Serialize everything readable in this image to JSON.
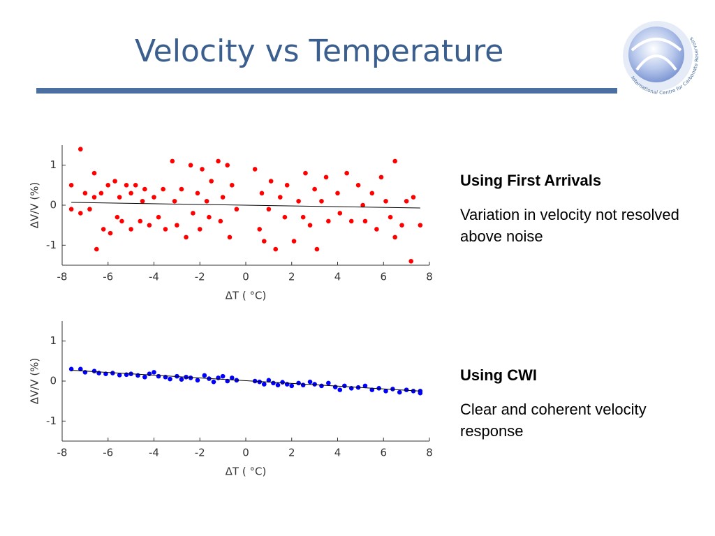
{
  "title": "Velocity vs Temperature",
  "logo_text": "International Centre for Carbonate Reservoirs",
  "panels": [
    {
      "heading": "Using First Arrivals",
      "text": "Variation in velocity not resolved above noise"
    },
    {
      "heading": "Using CWI",
      "text": "Clear and coherent velocity response"
    }
  ],
  "chart_data": [
    {
      "type": "scatter",
      "xlabel": "ΔT ( °C)",
      "ylabel": "ΔV/V (%)",
      "xlim": [
        -8,
        8
      ],
      "ylim": [
        -1.5,
        1.5
      ],
      "xticks": [
        -8,
        -6,
        -4,
        -2,
        0,
        2,
        4,
        6,
        8
      ],
      "yticks": [
        -1,
        0,
        1
      ],
      "series": [
        {
          "color": "#ff0000",
          "x": [
            -7.6,
            -7.6,
            -7.2,
            -7.2,
            -7.0,
            -6.8,
            -6.6,
            -6.6,
            -6.5,
            -6.3,
            -6.2,
            -6.0,
            -5.9,
            -5.7,
            -5.6,
            -5.5,
            -5.4,
            -5.2,
            -5.0,
            -5.0,
            -4.8,
            -4.6,
            -4.5,
            -4.4,
            -4.2,
            -4.0,
            -3.8,
            -3.6,
            -3.5,
            -3.2,
            -3.1,
            -3.0,
            -2.8,
            -2.6,
            -2.4,
            -2.3,
            -2.1,
            -2.0,
            -1.9,
            -1.7,
            -1.6,
            -1.5,
            -1.2,
            -1.1,
            -1.0,
            -0.8,
            -0.7,
            -0.6,
            -0.4,
            0.4,
            0.6,
            0.7,
            0.8,
            1.0,
            1.1,
            1.3,
            1.5,
            1.7,
            1.8,
            2.1,
            2.3,
            2.5,
            2.6,
            2.8,
            3.0,
            3.1,
            3.3,
            3.5,
            3.6,
            4.0,
            4.1,
            4.4,
            4.6,
            4.9,
            5.1,
            5.2,
            5.5,
            5.7,
            5.9,
            6.1,
            6.3,
            6.5,
            6.5,
            6.8,
            7.0,
            7.2,
            7.3,
            7.6
          ],
          "y": [
            0.5,
            -0.1,
            1.4,
            -0.2,
            0.3,
            -0.1,
            0.8,
            0.2,
            -1.1,
            0.3,
            -0.6,
            0.5,
            -0.7,
            0.6,
            -0.3,
            0.2,
            -0.4,
            0.5,
            0.3,
            -0.6,
            0.5,
            -0.4,
            0.1,
            0.4,
            -0.5,
            0.2,
            -0.3,
            0.4,
            -0.6,
            1.1,
            0.1,
            -0.5,
            0.4,
            -0.8,
            1.0,
            -0.2,
            0.3,
            -0.6,
            0.9,
            0.1,
            -0.3,
            0.6,
            1.1,
            -0.4,
            0.2,
            1.0,
            -0.8,
            0.5,
            -0.1,
            0.9,
            -0.6,
            0.3,
            -0.9,
            -0.1,
            0.6,
            -1.1,
            0.2,
            -0.3,
            0.5,
            -0.9,
            0.1,
            -0.3,
            0.8,
            -0.5,
            0.4,
            -1.1,
            0.1,
            0.7,
            -0.4,
            0.3,
            -0.2,
            0.8,
            -0.4,
            0.5,
            0.0,
            -0.4,
            0.3,
            -0.6,
            0.7,
            0.1,
            -0.3,
            1.1,
            -0.8,
            -0.5,
            0.1,
            -1.4,
            0.2,
            -0.5
          ]
        }
      ],
      "fit": {
        "x": [
          -7.6,
          7.6
        ],
        "y": [
          0.07,
          -0.07
        ]
      }
    },
    {
      "type": "scatter",
      "xlabel": "ΔT ( °C)",
      "ylabel": "ΔV/V (%)",
      "xlim": [
        -8,
        8
      ],
      "ylim": [
        -1.5,
        1.5
      ],
      "xticks": [
        -8,
        -6,
        -4,
        -2,
        0,
        2,
        4,
        6,
        8
      ],
      "yticks": [
        -1,
        0,
        1
      ],
      "series": [
        {
          "color": "#0000ff",
          "x": [
            -7.6,
            -7.2,
            -7.0,
            -6.6,
            -6.4,
            -6.1,
            -5.8,
            -5.5,
            -5.2,
            -5.0,
            -4.7,
            -4.4,
            -4.2,
            -4.0,
            -3.8,
            -3.5,
            -3.3,
            -3.0,
            -2.8,
            -2.6,
            -2.4,
            -2.1,
            -1.8,
            -1.6,
            -1.4,
            -1.2,
            -1.0,
            -0.8,
            -0.6,
            -0.4,
            0.4,
            0.6,
            0.8,
            1.0,
            1.2,
            1.4,
            1.6,
            1.8,
            2.0,
            2.3,
            2.5,
            2.8,
            3.0,
            3.3,
            3.6,
            3.9,
            4.1,
            4.3,
            4.6,
            4.9,
            5.2,
            5.5,
            5.8,
            6.1,
            6.4,
            6.7,
            7.0,
            7.3,
            7.6,
            7.6
          ],
          "y": [
            0.3,
            0.3,
            0.22,
            0.25,
            0.2,
            0.18,
            0.2,
            0.15,
            0.16,
            0.18,
            0.14,
            0.1,
            0.18,
            0.22,
            0.12,
            0.1,
            0.05,
            0.12,
            0.04,
            0.1,
            0.08,
            0.02,
            0.14,
            0.06,
            -0.02,
            0.08,
            0.12,
            0.0,
            0.08,
            0.02,
            0.0,
            -0.02,
            -0.08,
            0.02,
            -0.05,
            -0.1,
            -0.03,
            -0.08,
            -0.12,
            -0.05,
            -0.1,
            -0.02,
            -0.08,
            -0.12,
            -0.05,
            -0.15,
            -0.22,
            -0.12,
            -0.18,
            -0.16,
            -0.12,
            -0.22,
            -0.18,
            -0.25,
            -0.2,
            -0.28,
            -0.22,
            -0.25,
            -0.3,
            -0.25
          ]
        }
      ],
      "fit": {
        "x": [
          -7.6,
          7.6
        ],
        "y": [
          0.27,
          -0.25
        ]
      }
    }
  ]
}
